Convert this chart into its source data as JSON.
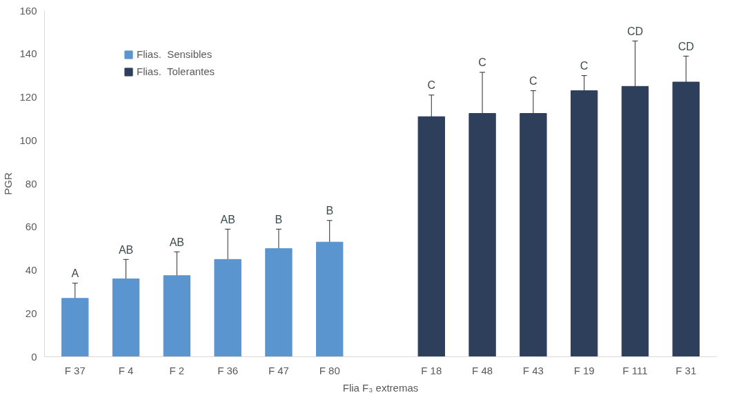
{
  "chart_data": {
    "type": "bar",
    "xlabel": "Flia F₃ extremas",
    "ylabel": "PGR",
    "categories": [
      "F 37",
      "F 4",
      "F 2",
      "F 36",
      "F 47",
      "F 80",
      null,
      "F 18",
      "F 48",
      "F 43",
      "F 19",
      "F 111",
      "F 31"
    ],
    "series": [
      {
        "name": "Flias.  Sensibles",
        "color": "#5b95cf",
        "values": [
          27,
          36,
          37.5,
          45,
          50,
          53,
          null,
          null,
          null,
          null,
          null,
          null,
          null
        ],
        "errors": [
          7,
          9,
          11,
          14,
          9,
          10,
          null,
          null,
          null,
          null,
          null,
          null,
          null
        ]
      },
      {
        "name": "Flias.  Tolerantes",
        "color": "#2e3f5c",
        "values": [
          null,
          null,
          null,
          null,
          null,
          null,
          null,
          111,
          112.5,
          112.5,
          123,
          125,
          127
        ],
        "errors": [
          null,
          null,
          null,
          null,
          null,
          null,
          null,
          10,
          19,
          10.5,
          7,
          21,
          12
        ]
      }
    ],
    "ylim": [
      0,
      160
    ],
    "yticks": [
      0,
      20,
      40,
      60,
      80,
      100,
      120,
      140,
      160
    ],
    "grid": false,
    "legend": "top left",
    "annotations": [
      {
        "text": "A",
        "x": "F 37",
        "y": 34
      },
      {
        "text": "AB",
        "x": "F 4",
        "y": 45
      },
      {
        "text": "AB",
        "x": "F 2",
        "y": 48.5
      },
      {
        "text": "AB",
        "x": "F 36",
        "y": 59
      },
      {
        "text": "B",
        "x": "F 47",
        "y": 59
      },
      {
        "text": "B",
        "x": "F 80",
        "y": 63
      },
      {
        "text": "C",
        "x": "F 18",
        "y": 121
      },
      {
        "text": "C",
        "x": "F 48",
        "y": 131.5
      },
      {
        "text": "C",
        "x": "F 43",
        "y": 123
      },
      {
        "text": "C",
        "x": "F 19",
        "y": 130
      },
      {
        "text": "CD",
        "x": "F 111",
        "y": 146
      },
      {
        "text": "CD",
        "x": "F 31",
        "y": 139
      }
    ]
  }
}
